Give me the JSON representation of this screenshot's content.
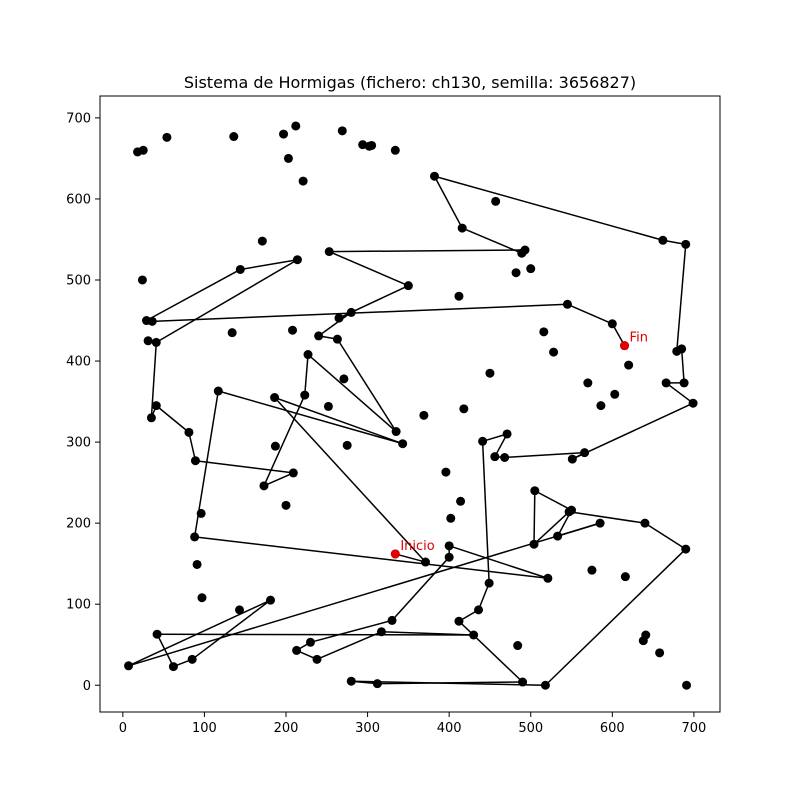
{
  "chart_data": {
    "type": "line",
    "title": "Sistema de Hormigas (fichero: ch130, semilla: 3656827)",
    "xlabel": "",
    "ylabel": "",
    "xlim": [
      -28,
      732
    ],
    "ylim": [
      -33,
      727
    ],
    "x_ticks": [
      0,
      100,
      200,
      300,
      400,
      500,
      600,
      700
    ],
    "y_ticks": [
      0,
      100,
      200,
      300,
      400,
      500,
      600,
      700
    ],
    "grid": false,
    "colors": {
      "path": "#000000",
      "point": "#000000",
      "endpoint": "#e00000"
    },
    "route": [
      [
        334,
        162
      ],
      [
        371,
        152
      ],
      [
        186,
        355
      ],
      [
        343,
        298
      ],
      [
        117,
        363
      ],
      [
        88,
        183
      ],
      [
        521,
        132
      ],
      [
        400,
        172
      ],
      [
        400,
        158
      ],
      [
        330,
        80
      ],
      [
        230,
        53
      ],
      [
        213,
        43
      ],
      [
        238,
        32
      ],
      [
        317,
        66
      ],
      [
        430,
        62
      ],
      [
        42,
        63
      ],
      [
        62,
        23
      ],
      [
        85,
        32
      ],
      [
        181,
        105
      ],
      [
        7,
        24
      ],
      [
        585,
        200
      ],
      [
        533,
        184
      ],
      [
        550,
        216
      ],
      [
        505,
        240
      ],
      [
        504,
        174
      ],
      [
        547,
        214
      ],
      [
        640,
        200
      ],
      [
        690,
        168
      ],
      [
        518,
        0
      ],
      [
        280,
        5
      ],
      [
        312,
        2
      ],
      [
        490,
        4
      ],
      [
        412,
        79
      ],
      [
        436,
        93
      ],
      [
        449,
        126
      ],
      [
        441,
        301
      ],
      [
        471,
        310
      ],
      [
        456,
        282
      ],
      [
        468,
        281
      ],
      [
        566,
        287
      ],
      [
        551,
        279
      ],
      [
        699,
        348
      ],
      [
        666,
        373
      ],
      [
        688,
        373
      ],
      [
        685,
        415
      ],
      [
        679,
        412
      ],
      [
        690,
        544
      ],
      [
        662,
        549
      ],
      [
        382,
        628
      ],
      [
        416,
        564
      ],
      [
        489,
        533
      ],
      [
        493,
        537
      ],
      [
        253,
        535
      ],
      [
        350,
        493
      ],
      [
        265,
        453
      ],
      [
        280,
        460
      ],
      [
        240,
        431
      ],
      [
        263,
        427
      ],
      [
        335,
        313
      ],
      [
        227,
        408
      ],
      [
        223,
        358
      ],
      [
        173,
        246
      ],
      [
        209,
        262
      ],
      [
        89,
        277
      ],
      [
        81,
        312
      ],
      [
        41,
        345
      ],
      [
        35,
        330
      ],
      [
        41,
        423
      ],
      [
        214,
        525
      ],
      [
        144,
        513
      ],
      [
        29,
        450
      ],
      [
        36,
        449
      ],
      [
        545,
        470
      ],
      [
        600,
        446
      ],
      [
        615,
        419
      ]
    ],
    "points": [
      [
        334,
        162
      ],
      [
        371,
        152
      ],
      [
        186,
        355
      ],
      [
        343,
        298
      ],
      [
        117,
        363
      ],
      [
        88,
        183
      ],
      [
        521,
        132
      ],
      [
        400,
        172
      ],
      [
        400,
        158
      ],
      [
        330,
        80
      ],
      [
        230,
        53
      ],
      [
        213,
        43
      ],
      [
        238,
        32
      ],
      [
        317,
        66
      ],
      [
        430,
        62
      ],
      [
        42,
        63
      ],
      [
        62,
        23
      ],
      [
        85,
        32
      ],
      [
        181,
        105
      ],
      [
        7,
        24
      ],
      [
        585,
        200
      ],
      [
        533,
        184
      ],
      [
        550,
        216
      ],
      [
        505,
        240
      ],
      [
        504,
        174
      ],
      [
        547,
        214
      ],
      [
        640,
        200
      ],
      [
        690,
        168
      ],
      [
        518,
        0
      ],
      [
        280,
        5
      ],
      [
        312,
        2
      ],
      [
        490,
        4
      ],
      [
        412,
        79
      ],
      [
        436,
        93
      ],
      [
        449,
        126
      ],
      [
        441,
        301
      ],
      [
        471,
        310
      ],
      [
        456,
        282
      ],
      [
        468,
        281
      ],
      [
        566,
        287
      ],
      [
        551,
        279
      ],
      [
        699,
        348
      ],
      [
        666,
        373
      ],
      [
        688,
        373
      ],
      [
        685,
        415
      ],
      [
        679,
        412
      ],
      [
        690,
        544
      ],
      [
        662,
        549
      ],
      [
        382,
        628
      ],
      [
        416,
        564
      ],
      [
        489,
        533
      ],
      [
        493,
        537
      ],
      [
        253,
        535
      ],
      [
        350,
        493
      ],
      [
        265,
        453
      ],
      [
        280,
        460
      ],
      [
        240,
        431
      ],
      [
        263,
        427
      ],
      [
        335,
        313
      ],
      [
        227,
        408
      ],
      [
        223,
        358
      ],
      [
        173,
        246
      ],
      [
        209,
        262
      ],
      [
        89,
        277
      ],
      [
        81,
        312
      ],
      [
        41,
        345
      ],
      [
        35,
        330
      ],
      [
        41,
        423
      ],
      [
        214,
        525
      ],
      [
        144,
        513
      ],
      [
        29,
        450
      ],
      [
        36,
        449
      ],
      [
        545,
        470
      ],
      [
        600,
        446
      ],
      [
        615,
        419
      ],
      [
        294,
        667
      ],
      [
        302,
        665
      ],
      [
        269,
        684
      ],
      [
        212,
        690
      ],
      [
        197,
        680
      ],
      [
        54,
        676
      ],
      [
        136,
        677
      ],
      [
        203,
        650
      ],
      [
        221,
        622
      ],
      [
        18,
        658
      ],
      [
        25,
        660
      ],
      [
        24,
        500
      ],
      [
        31,
        425
      ],
      [
        134,
        435
      ],
      [
        208,
        438
      ],
      [
        200,
        222
      ],
      [
        96,
        212
      ],
      [
        91,
        149
      ],
      [
        143,
        93
      ],
      [
        97,
        108
      ],
      [
        305,
        666
      ],
      [
        334,
        660
      ],
      [
        457,
        597
      ],
      [
        482,
        509
      ],
      [
        412,
        480
      ],
      [
        450,
        385
      ],
      [
        418,
        341
      ],
      [
        369,
        333
      ],
      [
        187,
        295
      ],
      [
        271,
        378
      ],
      [
        252,
        344
      ],
      [
        275,
        296
      ],
      [
        500,
        514
      ],
      [
        528,
        411
      ],
      [
        516,
        436
      ],
      [
        586,
        345
      ],
      [
        603,
        359
      ],
      [
        570,
        373
      ],
      [
        620,
        395
      ],
      [
        616,
        134
      ],
      [
        575,
        142
      ],
      [
        641,
        62
      ],
      [
        638,
        55
      ],
      [
        658,
        40
      ],
      [
        691,
        0
      ],
      [
        484,
        49
      ],
      [
        396,
        263
      ],
      [
        414,
        227
      ],
      [
        402,
        206
      ],
      [
        171,
        548
      ]
    ],
    "annotations": [
      {
        "label": "Inicio",
        "x": 334,
        "y": 162
      },
      {
        "label": "Fin",
        "x": 615,
        "y": 419
      }
    ]
  }
}
